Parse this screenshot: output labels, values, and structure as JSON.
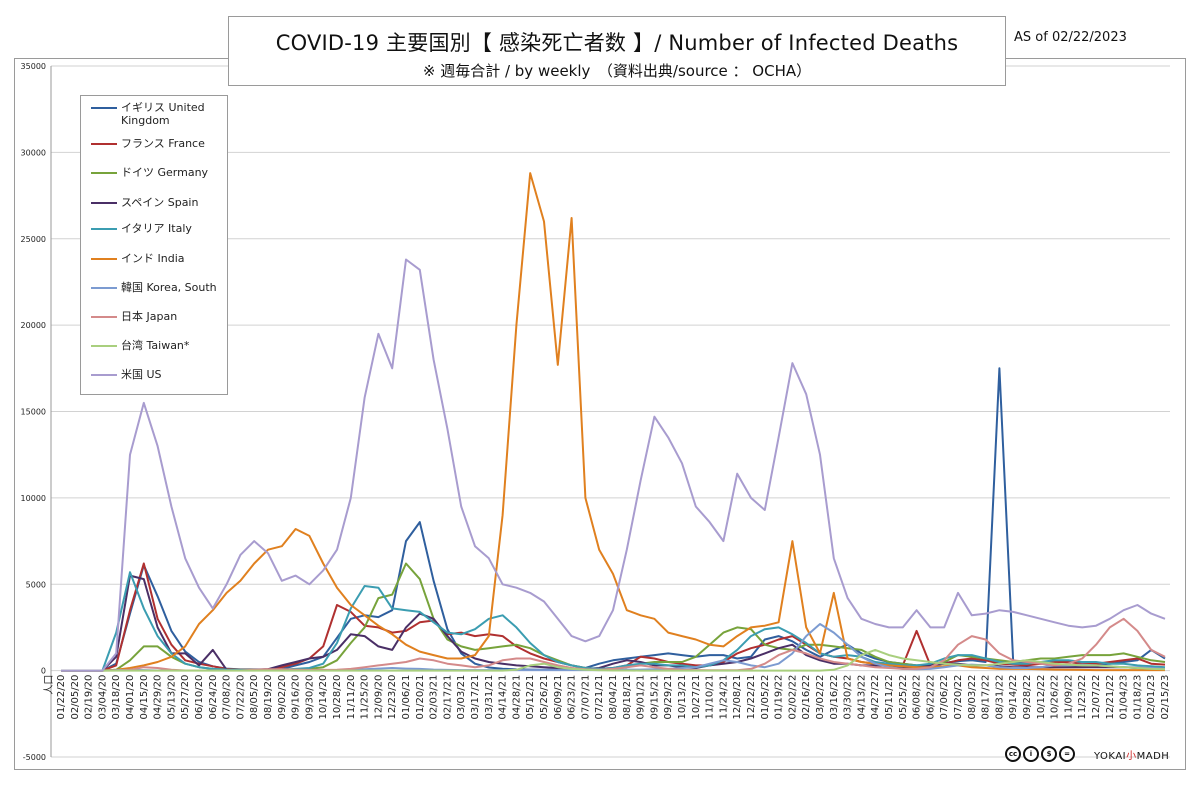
{
  "header": {
    "title": "COVID-19 主要国別【 感染死亡者数 】/ Number of Infected Deaths",
    "subtitle": "※ 週毎合計 / by weekly　（資料出典/source ： OCHA）",
    "as_of": "AS of  02/22/2023"
  },
  "footer": {
    "license_icons": [
      "cc-icon",
      "by-icon",
      "nc-icon",
      "nd-icon"
    ],
    "license_glyphs": [
      "cc",
      "i",
      "$",
      "="
    ],
    "logo_left": "YOKAI",
    "logo_mid": "小",
    "logo_right": "MADH"
  },
  "chart_data": {
    "type": "line",
    "title": "COVID-19 主要国別【 感染死亡者数 】/ Number of Infected Deaths",
    "xlabel": "",
    "ylabel": "",
    "ylim": [
      -5000,
      35000
    ],
    "yticks": [
      -5000,
      0,
      5000,
      10000,
      15000,
      20000,
      25000,
      30000,
      35000
    ],
    "grid": "horizontal",
    "legend_position": "top-left",
    "x_first_label": "人口",
    "x_tick_labels": [
      "01/22/20",
      "02/05/20",
      "02/19/20",
      "03/04/20",
      "03/18/20",
      "04/01/20",
      "04/15/20",
      "04/29/20",
      "05/13/20",
      "05/27/20",
      "06/10/20",
      "06/24/20",
      "07/08/20",
      "07/22/20",
      "08/05/20",
      "08/19/20",
      "09/02/20",
      "09/16/20",
      "09/30/20",
      "10/14/20",
      "10/28/20",
      "11/11/20",
      "11/25/20",
      "12/09/20",
      "12/23/20",
      "01/06/21",
      "01/20/21",
      "02/03/21",
      "02/17/21",
      "03/03/21",
      "03/17/21",
      "03/31/21",
      "04/14/21",
      "04/28/21",
      "05/12/21",
      "05/26/21",
      "06/09/21",
      "06/23/21",
      "07/07/21",
      "07/21/21",
      "08/04/21",
      "08/18/21",
      "09/01/21",
      "09/15/21",
      "09/29/21",
      "10/13/21",
      "10/27/21",
      "11/10/21",
      "11/24/21",
      "12/08/21",
      "12/22/21",
      "01/05/22",
      "01/19/22",
      "02/02/22",
      "02/16/22",
      "03/02/22",
      "03/16/22",
      "03/30/22",
      "04/13/22",
      "04/27/22",
      "05/11/22",
      "05/25/22",
      "06/08/22",
      "06/22/22",
      "07/06/22",
      "07/20/22",
      "08/03/22",
      "08/17/22",
      "08/31/22",
      "09/14/22",
      "09/28/22",
      "10/12/22",
      "10/26/22",
      "11/09/22",
      "11/23/22",
      "12/07/22",
      "12/21/22",
      "01/04/23",
      "01/18/23",
      "02/01/23",
      "02/15/23"
    ],
    "series": [
      {
        "name": "イギリス United Kingdom",
        "color": "#2f5f9e",
        "values": [
          0,
          0,
          0,
          0,
          400,
          3300,
          6100,
          4300,
          2300,
          1100,
          500,
          250,
          120,
          70,
          70,
          70,
          90,
          300,
          500,
          800,
          1900,
          3000,
          3200,
          3100,
          3500,
          7500,
          8600,
          5200,
          2400,
          1000,
          400,
          180,
          110,
          70,
          60,
          50,
          60,
          80,
          150,
          400,
          600,
          700,
          800,
          900,
          1000,
          900,
          800,
          900,
          900,
          700,
          800,
          1800,
          2000,
          1700,
          1200,
          800,
          1200,
          1500,
          1000,
          700,
          500,
          400,
          300,
          350,
          450,
          550,
          600,
          500,
          17500,
          500,
          500,
          400,
          350,
          300,
          300,
          350,
          400,
          500,
          600,
          1200,
          700
        ]
      },
      {
        "name": "フランス France",
        "color": "#b03030",
        "values": [
          0,
          0,
          0,
          0,
          300,
          3500,
          6200,
          3000,
          1500,
          600,
          400,
          250,
          100,
          60,
          60,
          80,
          200,
          400,
          700,
          1400,
          3800,
          3400,
          2600,
          2500,
          2200,
          2300,
          2800,
          2900,
          2100,
          2200,
          2000,
          2100,
          2000,
          1400,
          1000,
          700,
          500,
          300,
          150,
          100,
          150,
          300,
          800,
          700,
          500,
          400,
          300,
          300,
          500,
          1000,
          1300,
          1500,
          1800,
          2000,
          1500,
          1000,
          800,
          700,
          500,
          400,
          300,
          300,
          2300,
          300,
          400,
          600,
          700,
          600,
          400,
          350,
          300,
          400,
          500,
          500,
          400,
          400,
          500,
          600,
          700,
          400,
          350
        ]
      },
      {
        "name": "ドイツ Germany",
        "color": "#77a33b",
        "values": [
          0,
          0,
          0,
          0,
          50,
          600,
          1400,
          1400,
          800,
          400,
          200,
          100,
          60,
          40,
          40,
          40,
          50,
          70,
          100,
          200,
          600,
          1600,
          2500,
          4200,
          4400,
          6200,
          5300,
          3000,
          1800,
          1400,
          1200,
          1300,
          1400,
          1500,
          1300,
          900,
          600,
          300,
          150,
          80,
          100,
          200,
          400,
          500,
          500,
          500,
          800,
          1500,
          2200,
          2500,
          2400,
          1500,
          1300,
          1200,
          1500,
          1500,
          1400,
          1300,
          1200,
          800,
          500,
          400,
          300,
          300,
          500,
          900,
          800,
          700,
          600,
          500,
          600,
          700,
          700,
          800,
          900,
          900,
          900,
          1000,
          800,
          600,
          500
        ]
      },
      {
        "name": "スペイン Spain",
        "color": "#4a2f66",
        "values": [
          0,
          0,
          0,
          0,
          800,
          5500,
          5300,
          2500,
          1000,
          1000,
          300,
          1200,
          50,
          30,
          40,
          80,
          300,
          500,
          700,
          800,
          1200,
          2100,
          2000,
          1400,
          1200,
          2500,
          3300,
          3000,
          2000,
          1100,
          700,
          500,
          400,
          300,
          250,
          200,
          150,
          100,
          100,
          150,
          400,
          600,
          500,
          300,
          300,
          200,
          150,
          300,
          400,
          500,
          700,
          1000,
          1300,
          1500,
          900,
          600,
          400,
          400,
          300,
          300,
          300,
          200,
          200,
          300,
          400,
          400,
          300,
          300,
          250,
          200,
          200,
          200,
          200,
          200,
          200,
          200,
          200,
          200,
          150,
          100,
          100
        ]
      },
      {
        "name": "イタリア Italy",
        "color": "#3b9db1",
        "values": [
          0,
          0,
          0,
          0,
          2200,
          5700,
          3600,
          2000,
          1000,
          400,
          200,
          100,
          60,
          40,
          40,
          50,
          60,
          100,
          150,
          400,
          1600,
          3600,
          4900,
          4800,
          3600,
          3500,
          3400,
          2800,
          2200,
          2100,
          2400,
          3000,
          3200,
          2500,
          1600,
          900,
          500,
          300,
          150,
          100,
          150,
          300,
          400,
          400,
          300,
          300,
          200,
          300,
          600,
          1200,
          2000,
          2400,
          2500,
          2100,
          1600,
          1000,
          800,
          900,
          800,
          500,
          400,
          300,
          300,
          400,
          700,
          900,
          900,
          700,
          500,
          400,
          400,
          500,
          600,
          600,
          500,
          500,
          400,
          400,
          300,
          250,
          200
        ]
      },
      {
        "name": "インド India",
        "color": "#e0801f",
        "values": [
          0,
          0,
          0,
          0,
          50,
          150,
          300,
          500,
          800,
          1400,
          2700,
          3500,
          4500,
          5200,
          6200,
          7000,
          7200,
          8200,
          7800,
          6200,
          4800,
          3800,
          3200,
          2600,
          2100,
          1500,
          1100,
          900,
          700,
          700,
          900,
          2000,
          9000,
          20000,
          28800,
          26000,
          17700,
          26200,
          10000,
          7000,
          5600,
          3500,
          3200,
          3000,
          2200,
          2000,
          1800,
          1500,
          1400,
          2000,
          2500,
          2600,
          2800,
          7500,
          2500,
          1000,
          4500,
          700,
          500,
          400,
          300,
          250,
          200,
          200,
          250,
          300,
          200,
          150,
          100,
          100,
          100,
          80,
          60,
          50,
          40,
          30,
          30,
          30,
          30,
          30,
          30
        ]
      },
      {
        "name": "韓国 Korea, South",
        "color": "#7c9bd1",
        "values": [
          0,
          0,
          0,
          0,
          30,
          40,
          30,
          10,
          5,
          5,
          5,
          5,
          5,
          5,
          10,
          20,
          30,
          20,
          10,
          10,
          20,
          40,
          80,
          120,
          150,
          120,
          100,
          60,
          40,
          30,
          30,
          30,
          30,
          30,
          30,
          30,
          30,
          30,
          30,
          30,
          50,
          60,
          60,
          80,
          100,
          150,
          200,
          400,
          600,
          500,
          300,
          200,
          400,
          1000,
          2000,
          2700,
          2200,
          1500,
          800,
          400,
          200,
          100,
          80,
          100,
          200,
          300,
          350,
          300,
          200,
          150,
          150,
          200,
          300,
          300,
          350,
          300,
          250,
          200,
          200,
          150,
          100
        ]
      },
      {
        "name": "日本 Japan",
        "color": "#d48a8a",
        "values": [
          0,
          0,
          0,
          0,
          10,
          50,
          200,
          150,
          50,
          10,
          5,
          5,
          5,
          10,
          50,
          80,
          80,
          60,
          40,
          40,
          50,
          100,
          200,
          300,
          400,
          500,
          700,
          600,
          400,
          300,
          200,
          300,
          600,
          700,
          700,
          500,
          300,
          150,
          80,
          50,
          100,
          200,
          300,
          200,
          100,
          50,
          30,
          20,
          20,
          20,
          100,
          400,
          900,
          1200,
          1000,
          700,
          500,
          400,
          300,
          200,
          150,
          100,
          100,
          200,
          600,
          1500,
          2000,
          1800,
          1000,
          600,
          500,
          400,
          300,
          400,
          700,
          1500,
          2500,
          3000,
          2300,
          1200,
          800
        ]
      },
      {
        "name": "台湾 Taiwan*",
        "color": "#a9cf7e",
        "values": [
          0,
          0,
          0,
          0,
          0,
          0,
          0,
          0,
          0,
          0,
          0,
          0,
          0,
          0,
          0,
          0,
          0,
          0,
          0,
          0,
          0,
          0,
          0,
          0,
          0,
          0,
          0,
          0,
          0,
          0,
          0,
          0,
          0,
          50,
          300,
          400,
          200,
          100,
          50,
          20,
          10,
          5,
          0,
          0,
          0,
          0,
          0,
          0,
          0,
          0,
          0,
          0,
          0,
          0,
          0,
          0,
          50,
          300,
          900,
          1200,
          900,
          700,
          600,
          500,
          400,
          350,
          300,
          300,
          400,
          500,
          600,
          500,
          400,
          350,
          300,
          300,
          250,
          200,
          150,
          100,
          80
        ]
      },
      {
        "name": "米国 US",
        "color": "#a89ccf",
        "values": [
          0,
          0,
          0,
          0,
          1000,
          12500,
          15500,
          13000,
          9500,
          6500,
          4800,
          3600,
          5000,
          6700,
          7500,
          6800,
          5200,
          5500,
          5000,
          5800,
          7000,
          10000,
          15800,
          19500,
          17500,
          23800,
          23200,
          18000,
          14000,
          9500,
          7200,
          6500,
          5000,
          4800,
          4500,
          4000,
          3000,
          2000,
          1700,
          2000,
          3500,
          7000,
          11000,
          14700,
          13500,
          12000,
          9500,
          8600,
          7500,
          11400,
          10000,
          9300,
          13500,
          17800,
          16000,
          12500,
          6500,
          4200,
          3000,
          2700,
          2500,
          2500,
          3500,
          2500,
          2500,
          4500,
          3200,
          3300,
          3500,
          3400,
          3200,
          3000,
          2800,
          2600,
          2500,
          2600,
          3000,
          3500,
          3800,
          3300,
          3000
        ]
      }
    ]
  }
}
